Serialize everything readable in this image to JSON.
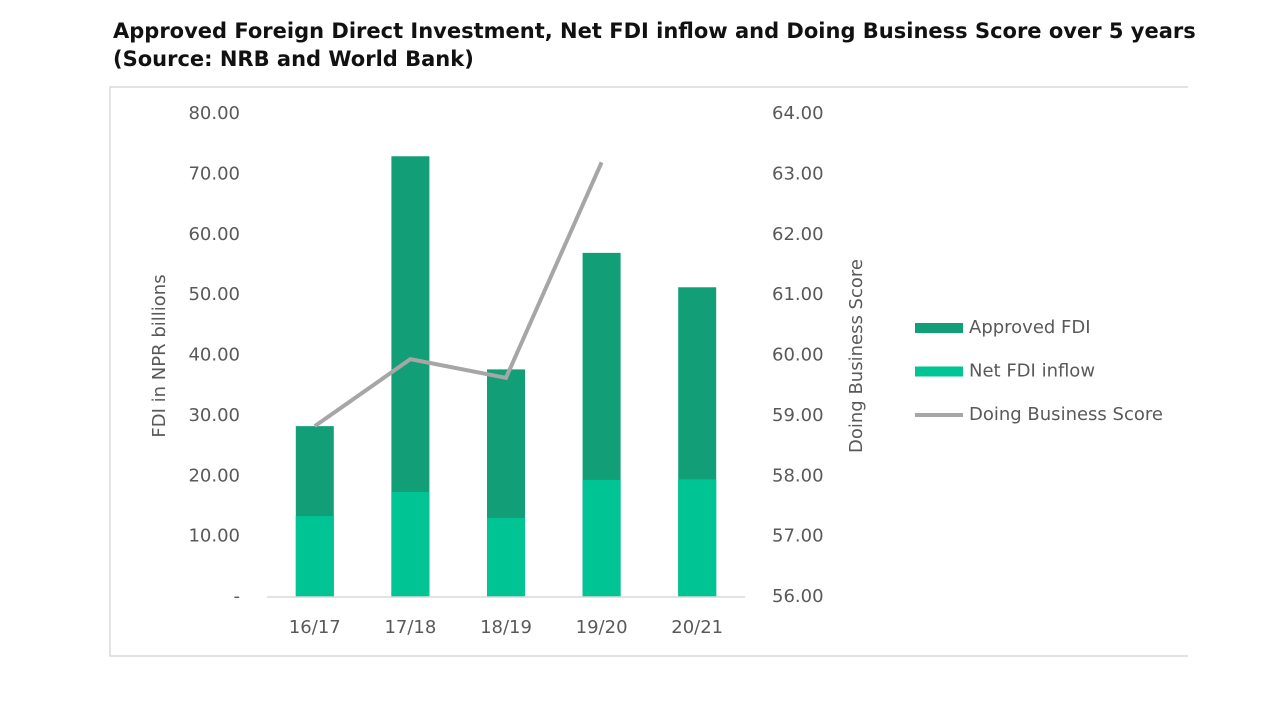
{
  "chart_data": {
    "type": "bar_line",
    "title": "Approved Foreign Direct Investment, Net FDI  inflow and Doing Business  Score over 5 years",
    "subtitle": "(Source: NRB  and World Bank)",
    "y_label": "FDI in NPR billions",
    "y2_label": "Doing Business Score",
    "categories": [
      "16/17",
      "17/18",
      "18/19",
      "19/20",
      "20/21"
    ],
    "series": [
      {
        "name": "Approved FDI",
        "type": "bar",
        "color": "#129e76",
        "values": [
          28.3,
          73.0,
          37.7,
          57.0,
          51.3
        ]
      },
      {
        "name": "Net FDI inflow",
        "type": "bar",
        "color": "#00c493",
        "values": [
          13.4,
          17.4,
          13.1,
          19.4,
          19.5
        ]
      },
      {
        "name": "Doing Business Score",
        "type": "line",
        "axis": "y2",
        "color": "#a6a6a6",
        "values": [
          58.83,
          59.94,
          59.63,
          63.2,
          null
        ]
      }
    ],
    "ylim": [
      0,
      80
    ],
    "yticks": [
      {
        "value": 0,
        "label": "-"
      },
      {
        "value": 10,
        "label": "10.00"
      },
      {
        "value": 20,
        "label": "20.00"
      },
      {
        "value": 30,
        "label": "30.00"
      },
      {
        "value": 40,
        "label": "40.00"
      },
      {
        "value": 50,
        "label": "50.00"
      },
      {
        "value": 60,
        "label": "60.00"
      },
      {
        "value": 70,
        "label": "70.00"
      },
      {
        "value": 80,
        "label": "80.00"
      }
    ],
    "y2lim": [
      56,
      64
    ],
    "y2ticks": [
      {
        "value": 56,
        "label": "56.00"
      },
      {
        "value": 57,
        "label": "57.00"
      },
      {
        "value": 58,
        "label": "58.00"
      },
      {
        "value": 59,
        "label": "59.00"
      },
      {
        "value": 60,
        "label": "60.00"
      },
      {
        "value": 61,
        "label": "61.00"
      },
      {
        "value": 62,
        "label": "62.00"
      },
      {
        "value": 63,
        "label": "63.00"
      },
      {
        "value": 64,
        "label": "64.00"
      }
    ],
    "legend": "right"
  }
}
